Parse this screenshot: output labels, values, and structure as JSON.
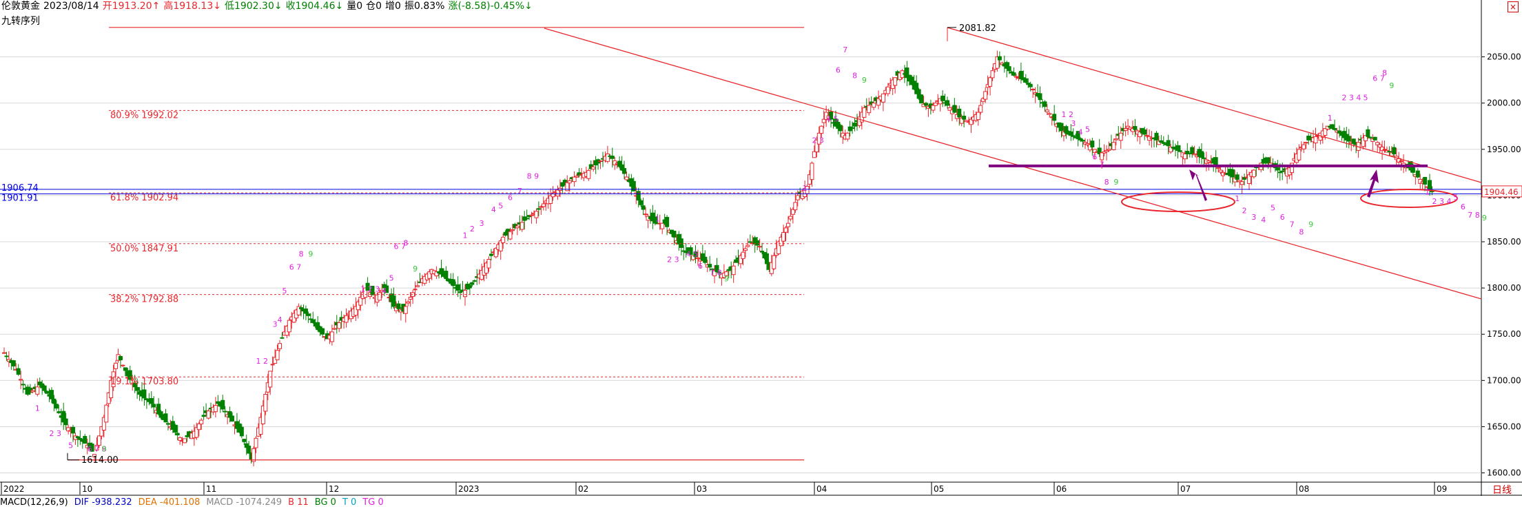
{
  "header": {
    "symbol": "伦敦黄金",
    "date": "2023/08/14",
    "open": "开1913.20↑",
    "high": "高1918.13↓",
    "low": "低1902.30↓",
    "close": "收1904.46↓",
    "volume": "量0",
    "position": "仓0",
    "increase": "增0",
    "amplitude": "振0.83%",
    "change": "涨(-8.58)-0.45%↓",
    "indicator": "九转序列"
  },
  "colors": {
    "up": "#e8262c",
    "down": "#008000",
    "fib": "#e8262c",
    "channel": "#e8262c",
    "support": "#800080",
    "blue_lines": "#0000e0",
    "count_purple": "#e020e0",
    "count_green": "#38c838"
  },
  "chart_data": {
    "type": "candlestick",
    "x_axis_labels": [
      "2022",
      "10",
      "11",
      "12",
      "2023",
      "02",
      "03",
      "04",
      "05",
      "06",
      "07",
      "08",
      "09"
    ],
    "y_ticks": [
      1600,
      1650,
      1700,
      1750,
      1800,
      1850,
      1900,
      1950,
      2000,
      2050
    ],
    "y_tick_labels": [
      "1600.00",
      "1650.00",
      "1700.00",
      "1750.00",
      "1800.00",
      "1850.00",
      "1900.00",
      "1950.00",
      "2000.00",
      "2050.00"
    ],
    "ylim": [
      1590,
      2110
    ],
    "last_price": 1904.46,
    "last_price_label": "1904.46",
    "peak_label": "2081.82",
    "trough_label": "1614.00",
    "blue_lines": [
      {
        "value": 1906.74,
        "label": "1906.74"
      },
      {
        "value": 1901.91,
        "label": "1901.91"
      }
    ],
    "fibonacci_levels": [
      {
        "label": "80.9% 1992.02",
        "value": 1992.02
      },
      {
        "label": "61.8% 1902.94",
        "value": 1902.94
      },
      {
        "label": "50.0% 1847.91",
        "value": 1847.91
      },
      {
        "label": "38.2% 1792.88",
        "value": 1792.88
      },
      {
        "label": "19.1% 1703.80",
        "value": 1703.8
      }
    ],
    "fib_bounds": [
      {
        "value": 2081.82
      },
      {
        "value": 1614.0
      }
    ],
    "support_line": {
      "value": 1932
    },
    "candles_monthly_anchor": [
      [
        0,
        1730
      ],
      [
        5,
        1712
      ],
      [
        10,
        1685
      ],
      [
        15,
        1695
      ],
      [
        20,
        1680
      ],
      [
        25,
        1655
      ],
      [
        30,
        1640
      ],
      [
        35,
        1630
      ],
      [
        38,
        1620
      ],
      [
        42,
        1660
      ],
      [
        45,
        1700
      ],
      [
        48,
        1728
      ],
      [
        52,
        1705
      ],
      [
        57,
        1685
      ],
      [
        62,
        1675
      ],
      [
        66,
        1660
      ],
      [
        70,
        1650
      ],
      [
        75,
        1635
      ],
      [
        80,
        1645
      ],
      [
        85,
        1665
      ],
      [
        90,
        1675
      ],
      [
        95,
        1660
      ],
      [
        100,
        1640
      ],
      [
        104,
        1615
      ],
      [
        108,
        1660
      ],
      [
        112,
        1710
      ],
      [
        116,
        1740
      ],
      [
        120,
        1765
      ],
      [
        124,
        1780
      ],
      [
        128,
        1770
      ],
      [
        132,
        1755
      ],
      [
        136,
        1745
      ],
      [
        140,
        1760
      ],
      [
        144,
        1770
      ],
      [
        148,
        1780
      ],
      [
        152,
        1800
      ],
      [
        156,
        1790
      ],
      [
        160,
        1800
      ],
      [
        164,
        1780
      ],
      [
        168,
        1775
      ],
      [
        172,
        1795
      ],
      [
        176,
        1810
      ],
      [
        180,
        1820
      ],
      [
        184,
        1815
      ],
      [
        188,
        1805
      ],
      [
        192,
        1795
      ],
      [
        196,
        1800
      ],
      [
        200,
        1815
      ],
      [
        205,
        1835
      ],
      [
        210,
        1855
      ],
      [
        215,
        1865
      ],
      [
        220,
        1875
      ],
      [
        225,
        1885
      ],
      [
        230,
        1900
      ],
      [
        235,
        1910
      ],
      [
        240,
        1920
      ],
      [
        245,
        1925
      ],
      [
        250,
        1935
      ],
      [
        254,
        1945
      ],
      [
        258,
        1935
      ],
      [
        262,
        1920
      ],
      [
        266,
        1900
      ],
      [
        270,
        1880
      ],
      [
        274,
        1870
      ],
      [
        278,
        1870
      ],
      [
        282,
        1855
      ],
      [
        286,
        1840
      ],
      [
        290,
        1835
      ],
      [
        294,
        1830
      ],
      [
        298,
        1820
      ],
      [
        302,
        1815
      ],
      [
        306,
        1820
      ],
      [
        310,
        1835
      ],
      [
        314,
        1850
      ],
      [
        318,
        1845
      ],
      [
        322,
        1820
      ],
      [
        326,
        1850
      ],
      [
        330,
        1870
      ],
      [
        334,
        1900
      ],
      [
        338,
        1910
      ],
      [
        342,
        1960
      ],
      [
        346,
        1990
      ],
      [
        350,
        1975
      ],
      [
        354,
        1965
      ],
      [
        358,
        1975
      ],
      [
        362,
        1995
      ],
      [
        366,
        2000
      ],
      [
        370,
        2010
      ],
      [
        374,
        2025
      ],
      [
        378,
        2035
      ],
      [
        382,
        2020
      ],
      [
        386,
        2000
      ],
      [
        390,
        1995
      ],
      [
        394,
        2005
      ],
      [
        398,
        1995
      ],
      [
        402,
        1985
      ],
      [
        406,
        1980
      ],
      [
        410,
        1990
      ],
      [
        414,
        2020
      ],
      [
        418,
        2050
      ],
      [
        421,
        2040
      ],
      [
        425,
        2030
      ],
      [
        429,
        2025
      ],
      [
        433,
        2015
      ],
      [
        437,
        2000
      ],
      [
        441,
        1985
      ],
      [
        445,
        1970
      ],
      [
        449,
        1965
      ],
      [
        453,
        1960
      ],
      [
        457,
        1955
      ],
      [
        461,
        1945
      ],
      [
        465,
        1950
      ],
      [
        469,
        1965
      ],
      [
        473,
        1975
      ],
      [
        477,
        1970
      ],
      [
        481,
        1965
      ],
      [
        485,
        1960
      ],
      [
        489,
        1955
      ],
      [
        493,
        1950
      ],
      [
        497,
        1945
      ],
      [
        501,
        1945
      ],
      [
        505,
        1940
      ],
      [
        509,
        1935
      ],
      [
        513,
        1925
      ],
      [
        517,
        1920
      ],
      [
        521,
        1915
      ],
      [
        525,
        1925
      ],
      [
        529,
        1935
      ],
      [
        533,
        1935
      ],
      [
        537,
        1925
      ],
      [
        541,
        1930
      ],
      [
        545,
        1950
      ],
      [
        549,
        1960
      ],
      [
        553,
        1965
      ],
      [
        557,
        1975
      ],
      [
        561,
        1970
      ],
      [
        565,
        1960
      ],
      [
        569,
        1955
      ],
      [
        573,
        1965
      ],
      [
        577,
        1960
      ],
      [
        581,
        1950
      ],
      [
        585,
        1945
      ],
      [
        589,
        1935
      ],
      [
        593,
        1925
      ],
      [
        597,
        1915
      ],
      [
        601,
        1904
      ]
    ],
    "td_counts": [
      {
        "text": "1",
        "price": 1667,
        "color": "p",
        "col": 13
      },
      {
        "text": "2 3",
        "price": 1640,
        "color": "p",
        "col": 19
      },
      {
        "text": "5",
        "price": 1627,
        "color": "p",
        "col": 27
      },
      {
        "text": "6 7 8",
        "price": 1623,
        "color": "p",
        "col": 35
      },
      {
        "text": "9",
        "price": 1623,
        "color": "g",
        "col": 41
      },
      {
        "text": "1 2",
        "price": 1718,
        "color": "p",
        "col": 106
      },
      {
        "text": "3",
        "price": 1758,
        "color": "p",
        "col": 113
      },
      {
        "text": "4",
        "price": 1763,
        "color": "p",
        "col": 115
      },
      {
        "text": "5",
        "price": 1794,
        "color": "p",
        "col": 117
      },
      {
        "text": "6 7",
        "price": 1820,
        "color": "p",
        "col": 120
      },
      {
        "text": "8",
        "price": 1834,
        "color": "p",
        "col": 124
      },
      {
        "text": "9",
        "price": 1834,
        "color": "g",
        "col": 128
      },
      {
        "text": "1 2 3",
        "price": 1796,
        "color": "p",
        "col": 150
      },
      {
        "text": "4",
        "price": 1794,
        "color": "p",
        "col": 159
      },
      {
        "text": "5",
        "price": 1808,
        "color": "p",
        "col": 162
      },
      {
        "text": "6 7",
        "price": 1842,
        "color": "p",
        "col": 164
      },
      {
        "text": "8",
        "price": 1846,
        "color": "p",
        "col": 168
      },
      {
        "text": "9",
        "price": 1818,
        "color": "g",
        "col": 172
      },
      {
        "text": "1",
        "price": 1854,
        "color": "p",
        "col": 193
      },
      {
        "text": "2",
        "price": 1861,
        "color": "p",
        "col": 196
      },
      {
        "text": "3",
        "price": 1867,
        "color": "p",
        "col": 200
      },
      {
        "text": "4",
        "price": 1882,
        "color": "p",
        "col": 205
      },
      {
        "text": "5",
        "price": 1886,
        "color": "p",
        "col": 208
      },
      {
        "text": "6",
        "price": 1895,
        "color": "p",
        "col": 212
      },
      {
        "text": "7",
        "price": 1902,
        "color": "p",
        "col": 216
      },
      {
        "text": "8 9",
        "price": 1918,
        "color": "p",
        "col": 220
      },
      {
        "text": "1",
        "price": 1872,
        "color": "p",
        "col": 274
      },
      {
        "text": "2 3",
        "price": 1828,
        "color": "p",
        "col": 279
      },
      {
        "text": "4 5",
        "price": 1834,
        "color": "p",
        "col": 287
      },
      {
        "text": "6",
        "price": 1821,
        "color": "p",
        "col": 292
      },
      {
        "text": "7 8",
        "price": 1814,
        "color": "p",
        "col": 297
      },
      {
        "text": "9",
        "price": 1807,
        "color": "g",
        "col": 303
      },
      {
        "text": "1",
        "price": 1905,
        "color": "p",
        "col": 336
      },
      {
        "text": "2 3",
        "price": 1957,
        "color": "p",
        "col": 340
      },
      {
        "text": "4 5",
        "price": 1980,
        "color": "p",
        "col": 346
      },
      {
        "text": "6",
        "price": 2033,
        "color": "p",
        "col": 350
      },
      {
        "text": "7",
        "price": 2055,
        "color": "p",
        "col": 353
      },
      {
        "text": "8",
        "price": 2027,
        "color": "p",
        "col": 357
      },
      {
        "text": "9",
        "price": 2022,
        "color": "g",
        "col": 361
      },
      {
        "text": "1 2",
        "price": 1985,
        "color": "p",
        "col": 445
      },
      {
        "text": "3",
        "price": 1975,
        "color": "p",
        "col": 449
      },
      {
        "text": "4",
        "price": 1966,
        "color": "p",
        "col": 452
      },
      {
        "text": "5",
        "price": 1969,
        "color": "p",
        "col": 455
      },
      {
        "text": "6",
        "price": 1939,
        "color": "p",
        "col": 458
      },
      {
        "text": "7",
        "price": 1931,
        "color": "p",
        "col": 461
      },
      {
        "text": "8",
        "price": 1912,
        "color": "p",
        "col": 463
      },
      {
        "text": "9",
        "price": 1912,
        "color": "g",
        "col": 467
      },
      {
        "text": "1",
        "price": 1894,
        "color": "p",
        "col": 518
      },
      {
        "text": "2",
        "price": 1881,
        "color": "p",
        "col": 521
      },
      {
        "text": "3",
        "price": 1874,
        "color": "p",
        "col": 525
      },
      {
        "text": "4",
        "price": 1871,
        "color": "p",
        "col": 529
      },
      {
        "text": "5",
        "price": 1884,
        "color": "p",
        "col": 533
      },
      {
        "text": "6",
        "price": 1874,
        "color": "p",
        "col": 537
      },
      {
        "text": "7",
        "price": 1866,
        "color": "p",
        "col": 541
      },
      {
        "text": "8",
        "price": 1858,
        "color": "p",
        "col": 545
      },
      {
        "text": "9",
        "price": 1866,
        "color": "g",
        "col": 549
      },
      {
        "text": "1",
        "price": 1981,
        "color": "p",
        "col": 557
      },
      {
        "text": "2 3 4",
        "price": 2003,
        "color": "p",
        "col": 563
      },
      {
        "text": "5",
        "price": 2003,
        "color": "p",
        "col": 572
      },
      {
        "text": "6 7",
        "price": 2024,
        "color": "p",
        "col": 576
      },
      {
        "text": "8",
        "price": 2030,
        "color": "p",
        "col": 580
      },
      {
        "text": "9",
        "price": 2016,
        "color": "g",
        "col": 583
      },
      {
        "text": "1",
        "price": 1901,
        "color": "p",
        "col": 598
      },
      {
        "text": "2 3 4",
        "price": 1891,
        "color": "p",
        "col": 601
      },
      {
        "text": "5",
        "price": 1895,
        "color": "p",
        "col": 610
      },
      {
        "text": "6",
        "price": 1885,
        "color": "p",
        "col": 613
      },
      {
        "text": "7 8",
        "price": 1876,
        "color": "p",
        "col": 616
      },
      {
        "text": "9",
        "price": 1873,
        "color": "g",
        "col": 622
      }
    ]
  },
  "bottom": {
    "macd": "MACD(12,26,9)",
    "dif": "DIF -938.232",
    "dea": "DEA -401.108",
    "macd_val": "MACD -1074.249",
    "b": "B 11",
    "bg": "BG 0",
    "t": "T 0",
    "tg": "TG 0"
  },
  "ui": {
    "timeframe": "日线",
    "close_icon": "close-icon"
  }
}
